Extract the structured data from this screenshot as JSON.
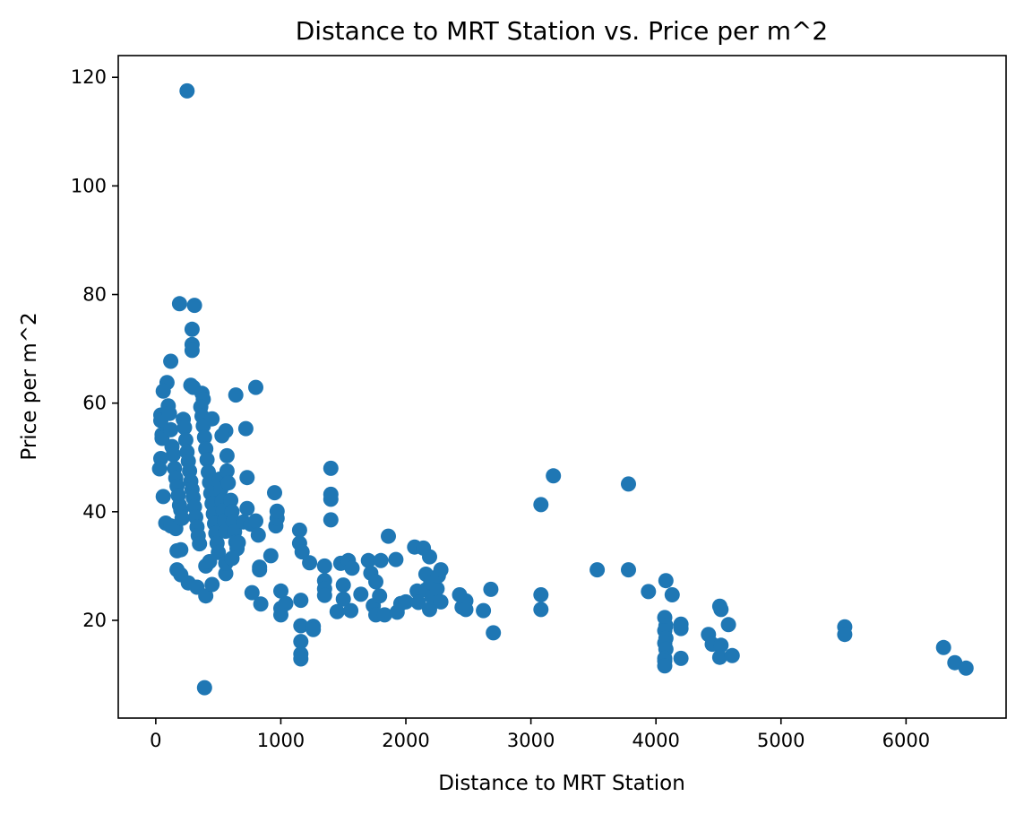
{
  "chart_data": {
    "type": "scatter",
    "title": "Distance to MRT Station vs. Price per m^2",
    "xlabel": "Distance to MRT Station",
    "ylabel": "Price per m^2",
    "xlim": [
      -300,
      6800
    ],
    "ylim": [
      2,
      124
    ],
    "xticks": [
      0,
      1000,
      2000,
      3000,
      4000,
      5000,
      6000
    ],
    "yticks": [
      20,
      40,
      60,
      80,
      100,
      120
    ],
    "grid": false,
    "color": "#1f77b4",
    "series": [
      {
        "points": [
          [
            250,
            117.5
          ],
          [
            390,
            7.6
          ],
          [
            190,
            78.3
          ],
          [
            310,
            78.0
          ],
          [
            290,
            73.6
          ],
          [
            290,
            70.8
          ],
          [
            290,
            69.7
          ],
          [
            120,
            67.7
          ],
          [
            280,
            63.3
          ],
          [
            300,
            62.9
          ],
          [
            90,
            63.8
          ],
          [
            60,
            62.2
          ],
          [
            640,
            61.5
          ],
          [
            800,
            62.9
          ],
          [
            370,
            61.8
          ],
          [
            380,
            60.7
          ],
          [
            40,
            57.8
          ],
          [
            40,
            56.8
          ],
          [
            50,
            54.2
          ],
          [
            50,
            53.5
          ],
          [
            40,
            49.8
          ],
          [
            30,
            47.9
          ],
          [
            60,
            42.8
          ],
          [
            80,
            37.9
          ],
          [
            120,
            37.4
          ],
          [
            160,
            36.9
          ],
          [
            100,
            59.5
          ],
          [
            110,
            58.1
          ],
          [
            120,
            55.1
          ],
          [
            130,
            52.0
          ],
          [
            140,
            50.5
          ],
          [
            150,
            48.0
          ],
          [
            160,
            46.2
          ],
          [
            170,
            44.7
          ],
          [
            180,
            43.0
          ],
          [
            190,
            41.2
          ],
          [
            200,
            40.3
          ],
          [
            210,
            38.8
          ],
          [
            220,
            57.0
          ],
          [
            230,
            55.5
          ],
          [
            240,
            53.2
          ],
          [
            250,
            51.0
          ],
          [
            260,
            49.3
          ],
          [
            270,
            47.5
          ],
          [
            280,
            45.6
          ],
          [
            290,
            44.1
          ],
          [
            300,
            42.6
          ],
          [
            310,
            40.9
          ],
          [
            320,
            39.0
          ],
          [
            330,
            37.2
          ],
          [
            340,
            35.6
          ],
          [
            350,
            34.1
          ],
          [
            360,
            59.3
          ],
          [
            370,
            57.6
          ],
          [
            380,
            55.8
          ],
          [
            390,
            53.7
          ],
          [
            400,
            51.6
          ],
          [
            410,
            49.6
          ],
          [
            420,
            47.3
          ],
          [
            430,
            45.4
          ],
          [
            440,
            43.4
          ],
          [
            450,
            41.5
          ],
          [
            460,
            39.6
          ],
          [
            470,
            37.8
          ],
          [
            480,
            36.0
          ],
          [
            490,
            34.2
          ],
          [
            500,
            32.5
          ],
          [
            510,
            46.0
          ],
          [
            520,
            44.1
          ],
          [
            530,
            42.0
          ],
          [
            540,
            40.2
          ],
          [
            550,
            38.3
          ],
          [
            560,
            36.4
          ],
          [
            570,
            47.5
          ],
          [
            580,
            45.3
          ],
          [
            600,
            42.1
          ],
          [
            610,
            40.0
          ],
          [
            620,
            38.2
          ],
          [
            630,
            36.3
          ],
          [
            640,
            34.4
          ],
          [
            650,
            33.2
          ],
          [
            570,
            50.3
          ],
          [
            560,
            54.9
          ],
          [
            530,
            54.0
          ],
          [
            720,
            55.3
          ],
          [
            730,
            46.3
          ],
          [
            450,
            57.1
          ],
          [
            200,
            33.0
          ],
          [
            170,
            32.8
          ],
          [
            170,
            29.3
          ],
          [
            200,
            28.4
          ],
          [
            260,
            26.9
          ],
          [
            330,
            26.1
          ],
          [
            400,
            24.5
          ],
          [
            450,
            26.6
          ],
          [
            400,
            30.0
          ],
          [
            430,
            30.8
          ],
          [
            560,
            28.6
          ],
          [
            560,
            30.5
          ],
          [
            610,
            31.4
          ],
          [
            660,
            34.3
          ],
          [
            700,
            38.1
          ],
          [
            730,
            40.6
          ],
          [
            760,
            37.7
          ],
          [
            800,
            38.3
          ],
          [
            820,
            35.7
          ],
          [
            830,
            29.3
          ],
          [
            830,
            29.8
          ],
          [
            840,
            23.0
          ],
          [
            770,
            25.1
          ],
          [
            920,
            31.9
          ],
          [
            960,
            37.4
          ],
          [
            970,
            38.8
          ],
          [
            970,
            40.1
          ],
          [
            950,
            43.5
          ],
          [
            1000,
            25.4
          ],
          [
            1000,
            22.2
          ],
          [
            1000,
            21.0
          ],
          [
            1040,
            23.1
          ],
          [
            1160,
            23.7
          ],
          [
            1160,
            19.0
          ],
          [
            1160,
            16.1
          ],
          [
            1160,
            13.8
          ],
          [
            1160,
            12.9
          ],
          [
            1260,
            18.9
          ],
          [
            1260,
            18.3
          ],
          [
            1150,
            36.6
          ],
          [
            1150,
            34.2
          ],
          [
            1170,
            32.6
          ],
          [
            1230,
            30.6
          ],
          [
            1350,
            30.0
          ],
          [
            1350,
            27.3
          ],
          [
            1350,
            25.8
          ],
          [
            1350,
            24.6
          ],
          [
            1400,
            38.5
          ],
          [
            1400,
            42.3
          ],
          [
            1400,
            43.2
          ],
          [
            1400,
            48.0
          ],
          [
            1450,
            21.6
          ],
          [
            1500,
            23.9
          ],
          [
            1500,
            26.5
          ],
          [
            1480,
            30.5
          ],
          [
            1540,
            31.0
          ],
          [
            1570,
            29.6
          ],
          [
            1560,
            21.8
          ],
          [
            1640,
            24.8
          ],
          [
            1700,
            31.0
          ],
          [
            1720,
            28.7
          ],
          [
            1740,
            22.7
          ],
          [
            1760,
            21.0
          ],
          [
            1760,
            27.1
          ],
          [
            1790,
            24.5
          ],
          [
            1800,
            31.0
          ],
          [
            1830,
            21.0
          ],
          [
            1860,
            35.5
          ],
          [
            1920,
            31.2
          ],
          [
            1930,
            21.5
          ],
          [
            1960,
            23.1
          ],
          [
            2000,
            23.4
          ],
          [
            2070,
            33.5
          ],
          [
            2090,
            25.4
          ],
          [
            2100,
            23.3
          ],
          [
            2140,
            33.3
          ],
          [
            2160,
            28.5
          ],
          [
            2160,
            25.6
          ],
          [
            2190,
            22.0
          ],
          [
            2190,
            31.7
          ],
          [
            2200,
            27.0
          ],
          [
            2210,
            24.3
          ],
          [
            2250,
            25.8
          ],
          [
            2260,
            28.2
          ],
          [
            2280,
            29.3
          ],
          [
            2280,
            23.4
          ],
          [
            2430,
            24.7
          ],
          [
            2450,
            22.4
          ],
          [
            2480,
            23.6
          ],
          [
            2480,
            22.0
          ],
          [
            2620,
            21.8
          ],
          [
            2680,
            25.7
          ],
          [
            2700,
            17.7
          ],
          [
            3080,
            41.3
          ],
          [
            3180,
            46.6
          ],
          [
            3080,
            24.7
          ],
          [
            3080,
            22.0
          ],
          [
            3530,
            29.3
          ],
          [
            3780,
            29.3
          ],
          [
            3780,
            45.1
          ],
          [
            3940,
            25.3
          ],
          [
            4080,
            27.3
          ],
          [
            4130,
            24.7
          ],
          [
            4070,
            20.5
          ],
          [
            4080,
            19.0
          ],
          [
            4070,
            18.1
          ],
          [
            4080,
            16.7
          ],
          [
            4070,
            15.8
          ],
          [
            4080,
            14.7
          ],
          [
            4070,
            13.0
          ],
          [
            4070,
            12.5
          ],
          [
            4070,
            11.6
          ],
          [
            4200,
            19.3
          ],
          [
            4200,
            18.5
          ],
          [
            4200,
            13.0
          ],
          [
            4420,
            17.4
          ],
          [
            4450,
            15.6
          ],
          [
            4510,
            22.6
          ],
          [
            4520,
            22.0
          ],
          [
            4520,
            15.4
          ],
          [
            4510,
            13.2
          ],
          [
            4580,
            19.2
          ],
          [
            4610,
            13.5
          ],
          [
            5510,
            18.8
          ],
          [
            5510,
            17.4
          ],
          [
            6300,
            15.0
          ],
          [
            6390,
            12.2
          ],
          [
            6480,
            11.2
          ]
        ]
      }
    ]
  }
}
